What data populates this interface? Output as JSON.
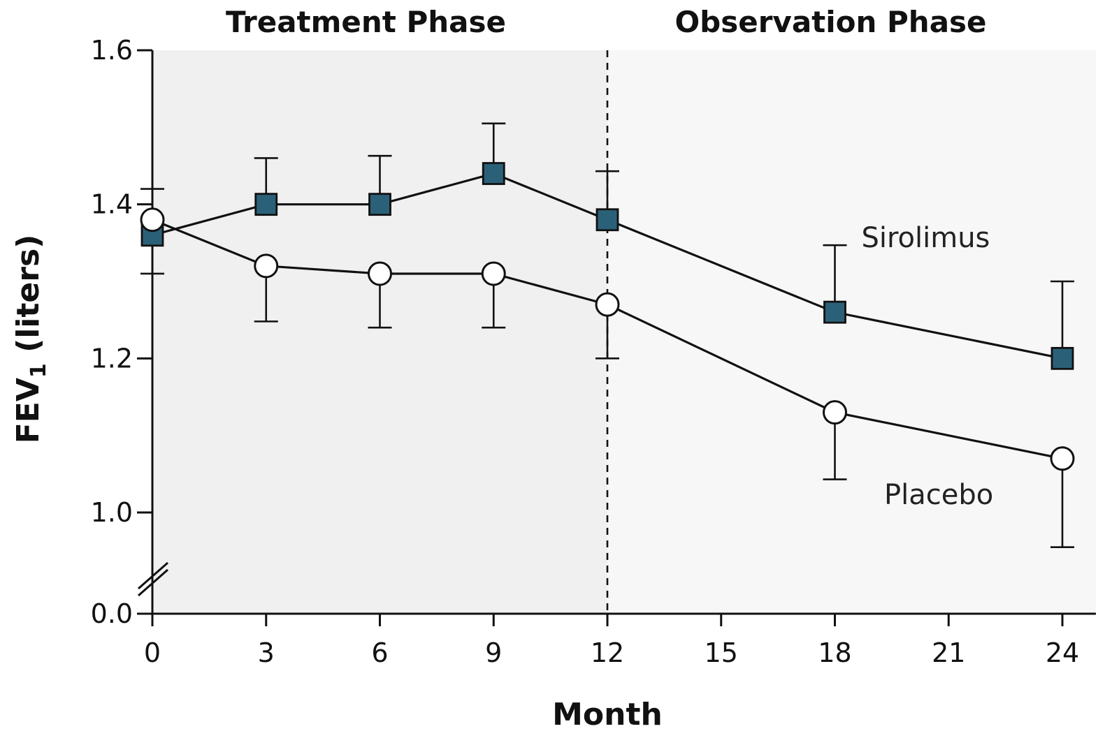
{
  "chart_data": {
    "type": "line",
    "phases": [
      {
        "label": "Treatment Phase",
        "x_range": [
          0,
          12
        ],
        "shade": "#f0f0f0"
      },
      {
        "label": "Observation Phase",
        "x_range": [
          12,
          25.8
        ],
        "shade": "#f7f7f7"
      }
    ],
    "xlabel": "Month",
    "ylabel_main": "FEV",
    "ylabel_sub": "1",
    "ylabel_unit": " (liters)",
    "x_ticks": [
      0,
      3,
      6,
      9,
      12,
      15,
      18,
      21,
      24
    ],
    "x_tick_labels": [
      "0",
      "3",
      "6",
      "9",
      "12",
      "15",
      "18",
      "21",
      "24"
    ],
    "y_ticks": [
      0.0,
      1.0,
      1.2,
      1.4,
      1.6
    ],
    "y_tick_labels": [
      "0.0",
      "1.0",
      "1.2",
      "1.4",
      "1.6"
    ],
    "xlim": [
      0,
      25.8
    ],
    "ylim_upper": [
      1.0,
      1.6
    ],
    "axis_break": "between 0.0 and 1.0",
    "divider_x": 12,
    "series": [
      {
        "name": "Sirolimus",
        "marker": "square",
        "color": "#2b6178",
        "x": [
          0,
          3,
          6,
          9,
          12,
          18,
          24
        ],
        "y": [
          1.36,
          1.4,
          1.4,
          1.44,
          1.38,
          1.26,
          1.2
        ],
        "err_upper": [
          1.42,
          1.46,
          1.463,
          1.505,
          1.443,
          1.347,
          1.3
        ],
        "err_lower": [
          null,
          null,
          null,
          null,
          null,
          null,
          null
        ]
      },
      {
        "name": "Placebo",
        "marker": "circle",
        "color": "#ffffff",
        "x": [
          0,
          3,
          6,
          9,
          12,
          18,
          24
        ],
        "y": [
          1.38,
          1.32,
          1.31,
          1.31,
          1.27,
          1.13,
          1.07
        ],
        "err_upper": [
          null,
          null,
          null,
          null,
          null,
          null,
          null
        ],
        "err_lower": [
          1.31,
          1.248,
          1.24,
          1.24,
          1.2,
          1.043,
          0.955
        ]
      }
    ]
  }
}
